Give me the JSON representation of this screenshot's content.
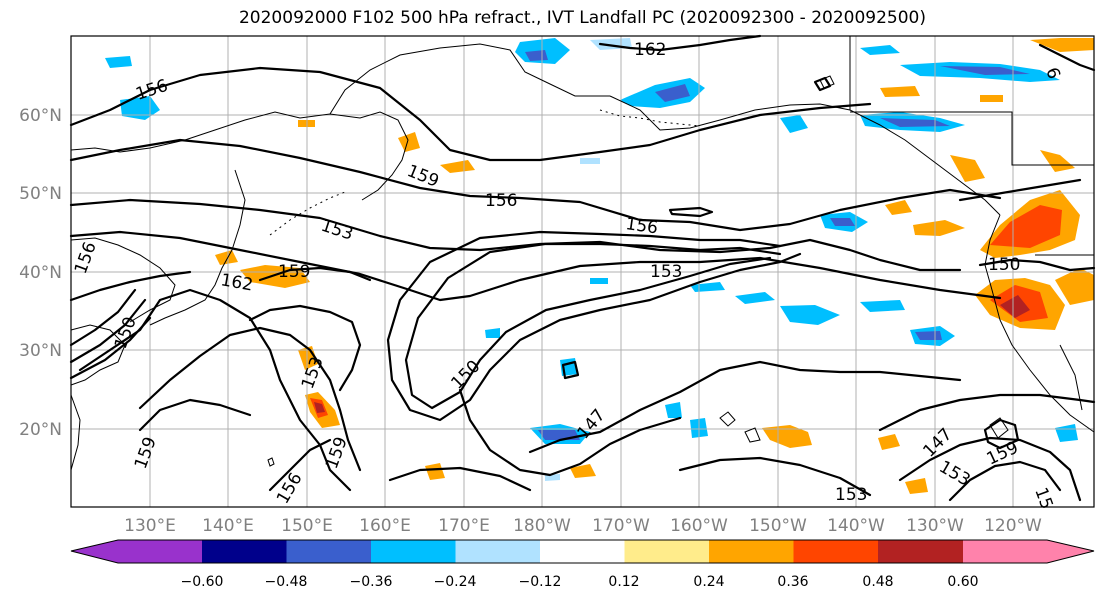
{
  "title": "2020092000 F102 500 hPa refract., IVT Landfall PC (2020092300 - 2020092500)",
  "lat_labels": [
    "60°N",
    "50°N",
    "40°N",
    "30°N",
    "20°N"
  ],
  "lon_labels": [
    "130°E",
    "140°E",
    "150°E",
    "160°E",
    "170°E",
    "180°W",
    "170°W",
    "160°W",
    "150°W",
    "140°W",
    "130°W",
    "120°W"
  ],
  "colorbar": {
    "tick_labels": [
      "−0.60",
      "−0.48",
      "−0.36",
      "−0.24",
      "−0.12",
      "0.12",
      "0.24",
      "0.36",
      "0.48",
      "0.60"
    ],
    "colors": [
      "#9932cc",
      "#00008b",
      "#3a5fcd",
      "#00bfff",
      "#b0e2ff",
      "#ffffff",
      "#ffec8b",
      "#ffa500",
      "#ff4500",
      "#b22222",
      "#ff82ab"
    ]
  },
  "contour_labels": [
    "162",
    "156",
    "159",
    "156",
    "153",
    "156",
    "153",
    "162",
    "159",
    "156",
    "150",
    "153",
    "150",
    "150",
    "147",
    "159",
    "147",
    "153",
    "159",
    "156",
    "153",
    "15",
    "159",
    "6"
  ]
}
